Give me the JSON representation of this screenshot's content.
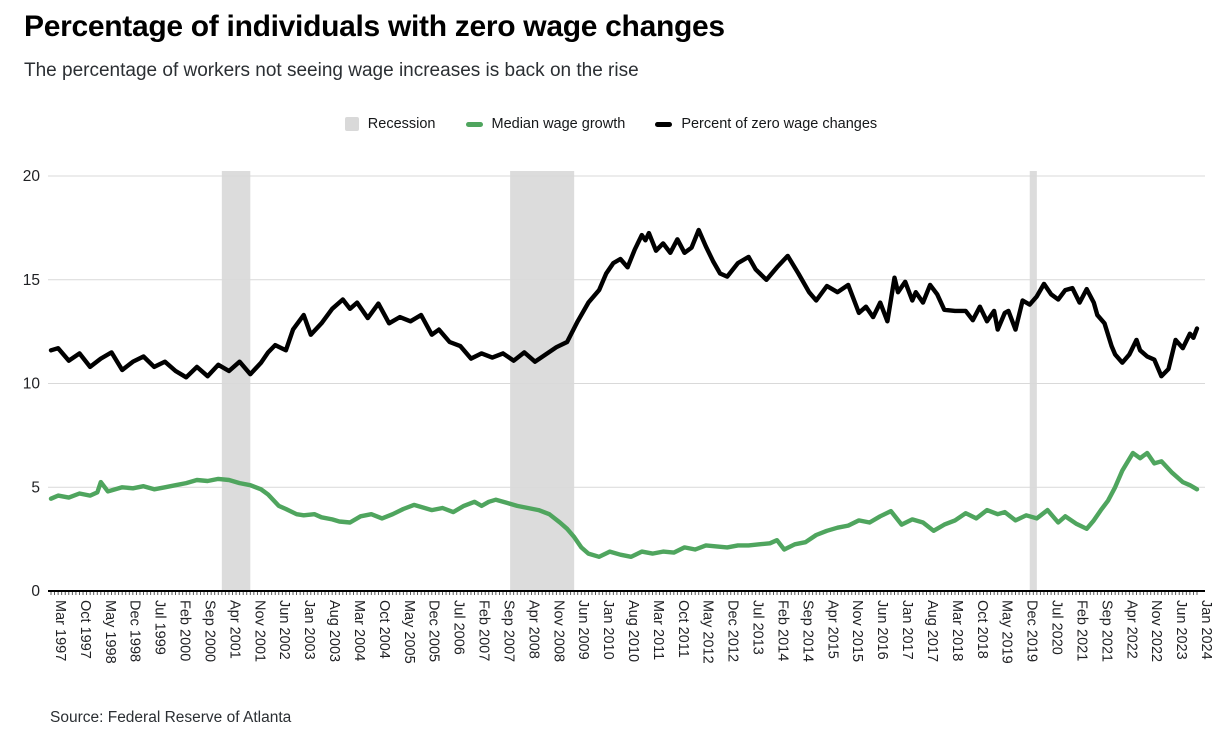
{
  "header": {
    "title": "Percentage of individuals with zero wage changes",
    "subtitle": "The percentage of workers not seeing wage increases is back on the rise"
  },
  "legend": {
    "items": [
      {
        "label": "Recession",
        "color": "#d9d9d9",
        "swatch": "square"
      },
      {
        "label": "Median wage growth",
        "color": "#4fa55e",
        "swatch": "dash"
      },
      {
        "label": "Percent of zero wage changes",
        "color": "#000000",
        "swatch": "dash"
      }
    ]
  },
  "source": {
    "text": "Source: Federal Reserve of Atlanta"
  },
  "colors": {
    "recession_band": "#dcdcdc",
    "gridline": "#d9d9d9",
    "axis": "#000000",
    "tick_text": "#202124"
  },
  "chart_data": {
    "type": "line",
    "title": "Percentage of individuals with zero wage changes",
    "xlabel": "",
    "ylabel": "",
    "grid": true,
    "legend_position": "top-center",
    "y_axis": {
      "min": 0,
      "max": 20,
      "ticks": [
        0,
        5,
        10,
        15,
        20
      ]
    },
    "x_axis": {
      "unit": "months since Mar 1997",
      "start": "Mar 1997",
      "end": "Jan 2024",
      "months_total": 322,
      "tick_interval_months": 7,
      "tick_labels": [
        "Mar 1997",
        "Oct 1997",
        "May 1998",
        "Dec 1998",
        "Jul 1999",
        "Feb 2000",
        "Sep 2000",
        "Apr 2001",
        "Nov 2001",
        "Jun 2002",
        "Jan 2003",
        "Aug 2003",
        "Mar 2004",
        "Oct 2004",
        "May 2005",
        "Dec 2005",
        "Jul 2006",
        "Feb 2007",
        "Sep 2007",
        "Apr 2008",
        "Nov 2008",
        "Jun 2009",
        "Jan 2010",
        "Aug 2010",
        "Mar 2011",
        "Oct 2011",
        "May 2012",
        "Dec 2012",
        "Jul 2013",
        "Feb 2014",
        "Sep 2014",
        "Apr 2015",
        "Nov 2015",
        "Jun 2016",
        "Jan 2017",
        "Aug 2017",
        "Mar 2018",
        "Oct 2018",
        "May 2019",
        "Dec 2019",
        "Jul 2020",
        "Feb 2021",
        "Sep 2021",
        "Apr 2022",
        "Nov 2022",
        "Jun 2023",
        "Jan 2024"
      ]
    },
    "recession_bands": [
      {
        "start": "Mar 2001",
        "end": "Nov 2001",
        "start_month": 48,
        "end_month": 56
      },
      {
        "start": "Dec 2007",
        "end": "Jun 2009",
        "start_month": 129,
        "end_month": 147
      },
      {
        "start": "Feb 2020",
        "end": "Apr 2020",
        "start_month": 275,
        "end_month": 277
      }
    ],
    "series": [
      {
        "name": "Median wage growth",
        "color": "#4fa55e",
        "points": [
          [
            0,
            4.45
          ],
          [
            2,
            4.6
          ],
          [
            5,
            4.5
          ],
          [
            8,
            4.7
          ],
          [
            11,
            4.6
          ],
          [
            13,
            4.75
          ],
          [
            14,
            5.25
          ],
          [
            16,
            4.8
          ],
          [
            17,
            4.85
          ],
          [
            20,
            5.0
          ],
          [
            23,
            4.95
          ],
          [
            26,
            5.05
          ],
          [
            29,
            4.9
          ],
          [
            32,
            5.0
          ],
          [
            35,
            5.1
          ],
          [
            38,
            5.2
          ],
          [
            41,
            5.35
          ],
          [
            44,
            5.3
          ],
          [
            47,
            5.4
          ],
          [
            50,
            5.35
          ],
          [
            53,
            5.2
          ],
          [
            56,
            5.1
          ],
          [
            59,
            4.9
          ],
          [
            61,
            4.65
          ],
          [
            64,
            4.1
          ],
          [
            66,
            3.95
          ],
          [
            69,
            3.7
          ],
          [
            71,
            3.65
          ],
          [
            74,
            3.7
          ],
          [
            76,
            3.55
          ],
          [
            79,
            3.45
          ],
          [
            81,
            3.35
          ],
          [
            84,
            3.3
          ],
          [
            87,
            3.6
          ],
          [
            90,
            3.7
          ],
          [
            93,
            3.5
          ],
          [
            96,
            3.7
          ],
          [
            99,
            3.95
          ],
          [
            102,
            4.15
          ],
          [
            105,
            4.0
          ],
          [
            107,
            3.9
          ],
          [
            110,
            4.0
          ],
          [
            113,
            3.8
          ],
          [
            116,
            4.1
          ],
          [
            119,
            4.3
          ],
          [
            121,
            4.1
          ],
          [
            123,
            4.3
          ],
          [
            125,
            4.4
          ],
          [
            128,
            4.25
          ],
          [
            131,
            4.1
          ],
          [
            134,
            4.0
          ],
          [
            137,
            3.9
          ],
          [
            140,
            3.7
          ],
          [
            143,
            3.3
          ],
          [
            145,
            3.0
          ],
          [
            147,
            2.6
          ],
          [
            149,
            2.1
          ],
          [
            151,
            1.8
          ],
          [
            154,
            1.65
          ],
          [
            157,
            1.9
          ],
          [
            160,
            1.75
          ],
          [
            163,
            1.65
          ],
          [
            166,
            1.9
          ],
          [
            169,
            1.8
          ],
          [
            172,
            1.9
          ],
          [
            175,
            1.85
          ],
          [
            178,
            2.1
          ],
          [
            181,
            2.0
          ],
          [
            184,
            2.2
          ],
          [
            187,
            2.15
          ],
          [
            190,
            2.1
          ],
          [
            193,
            2.2
          ],
          [
            196,
            2.2
          ],
          [
            199,
            2.25
          ],
          [
            202,
            2.3
          ],
          [
            204,
            2.45
          ],
          [
            206,
            2.0
          ],
          [
            209,
            2.25
          ],
          [
            212,
            2.35
          ],
          [
            215,
            2.7
          ],
          [
            218,
            2.9
          ],
          [
            221,
            3.05
          ],
          [
            224,
            3.15
          ],
          [
            227,
            3.4
          ],
          [
            230,
            3.3
          ],
          [
            233,
            3.6
          ],
          [
            236,
            3.85
          ],
          [
            239,
            3.2
          ],
          [
            242,
            3.45
          ],
          [
            245,
            3.3
          ],
          [
            248,
            2.9
          ],
          [
            251,
            3.2
          ],
          [
            254,
            3.4
          ],
          [
            257,
            3.75
          ],
          [
            260,
            3.5
          ],
          [
            263,
            3.9
          ],
          [
            266,
            3.7
          ],
          [
            268,
            3.8
          ],
          [
            271,
            3.4
          ],
          [
            274,
            3.65
          ],
          [
            277,
            3.5
          ],
          [
            280,
            3.9
          ],
          [
            283,
            3.3
          ],
          [
            285,
            3.6
          ],
          [
            288,
            3.25
          ],
          [
            291,
            3.0
          ],
          [
            293,
            3.4
          ],
          [
            295,
            3.9
          ],
          [
            297,
            4.35
          ],
          [
            299,
            5.0
          ],
          [
            301,
            5.8
          ],
          [
            304,
            6.65
          ],
          [
            306,
            6.4
          ],
          [
            308,
            6.65
          ],
          [
            310,
            6.15
          ],
          [
            312,
            6.25
          ],
          [
            315,
            5.7
          ],
          [
            318,
            5.25
          ],
          [
            320,
            5.1
          ],
          [
            322,
            4.9
          ]
        ]
      },
      {
        "name": "Percent of zero wage changes",
        "color": "#000000",
        "points": [
          [
            0,
            11.6
          ],
          [
            2,
            11.7
          ],
          [
            5,
            11.1
          ],
          [
            8,
            11.45
          ],
          [
            11,
            10.8
          ],
          [
            14,
            11.2
          ],
          [
            17,
            11.5
          ],
          [
            20,
            10.65
          ],
          [
            23,
            11.05
          ],
          [
            26,
            11.3
          ],
          [
            29,
            10.8
          ],
          [
            32,
            11.05
          ],
          [
            35,
            10.6
          ],
          [
            38,
            10.3
          ],
          [
            41,
            10.8
          ],
          [
            44,
            10.35
          ],
          [
            47,
            10.9
          ],
          [
            50,
            10.6
          ],
          [
            53,
            11.05
          ],
          [
            56,
            10.45
          ],
          [
            59,
            11.0
          ],
          [
            61,
            11.5
          ],
          [
            63,
            11.85
          ],
          [
            66,
            11.6
          ],
          [
            68,
            12.6
          ],
          [
            71,
            13.3
          ],
          [
            73,
            12.35
          ],
          [
            76,
            12.9
          ],
          [
            79,
            13.6
          ],
          [
            82,
            14.05
          ],
          [
            84,
            13.6
          ],
          [
            86,
            13.9
          ],
          [
            89,
            13.15
          ],
          [
            92,
            13.85
          ],
          [
            95,
            12.9
          ],
          [
            98,
            13.2
          ],
          [
            101,
            13.0
          ],
          [
            104,
            13.3
          ],
          [
            107,
            12.35
          ],
          [
            109,
            12.6
          ],
          [
            112,
            12.0
          ],
          [
            115,
            11.8
          ],
          [
            118,
            11.2
          ],
          [
            121,
            11.45
          ],
          [
            124,
            11.25
          ],
          [
            127,
            11.45
          ],
          [
            130,
            11.1
          ],
          [
            133,
            11.5
          ],
          [
            136,
            11.05
          ],
          [
            139,
            11.4
          ],
          [
            142,
            11.75
          ],
          [
            145,
            12.0
          ],
          [
            148,
            13.0
          ],
          [
            151,
            13.9
          ],
          [
            154,
            14.5
          ],
          [
            156,
            15.3
          ],
          [
            158,
            15.8
          ],
          [
            160,
            16.0
          ],
          [
            162,
            15.6
          ],
          [
            164,
            16.45
          ],
          [
            166,
            17.15
          ],
          [
            167,
            16.9
          ],
          [
            168,
            17.25
          ],
          [
            170,
            16.4
          ],
          [
            172,
            16.75
          ],
          [
            174,
            16.3
          ],
          [
            176,
            16.95
          ],
          [
            178,
            16.3
          ],
          [
            180,
            16.55
          ],
          [
            182,
            17.4
          ],
          [
            184,
            16.6
          ],
          [
            186,
            15.9
          ],
          [
            188,
            15.3
          ],
          [
            190,
            15.15
          ],
          [
            193,
            15.8
          ],
          [
            196,
            16.1
          ],
          [
            198,
            15.5
          ],
          [
            201,
            15.0
          ],
          [
            204,
            15.6
          ],
          [
            207,
            16.15
          ],
          [
            210,
            15.3
          ],
          [
            213,
            14.4
          ],
          [
            215,
            14.0
          ],
          [
            218,
            14.7
          ],
          [
            221,
            14.4
          ],
          [
            224,
            14.75
          ],
          [
            227,
            13.4
          ],
          [
            229,
            13.7
          ],
          [
            231,
            13.2
          ],
          [
            233,
            13.9
          ],
          [
            235,
            13.0
          ],
          [
            237,
            15.1
          ],
          [
            238,
            14.4
          ],
          [
            240,
            14.9
          ],
          [
            242,
            14.0
          ],
          [
            243,
            14.4
          ],
          [
            245,
            13.9
          ],
          [
            247,
            14.75
          ],
          [
            249,
            14.3
          ],
          [
            251,
            13.55
          ],
          [
            254,
            13.5
          ],
          [
            257,
            13.5
          ],
          [
            259,
            13.05
          ],
          [
            261,
            13.7
          ],
          [
            263,
            13.0
          ],
          [
            265,
            13.5
          ],
          [
            266,
            12.6
          ],
          [
            268,
            13.4
          ],
          [
            269,
            13.5
          ],
          [
            271,
            12.6
          ],
          [
            273,
            14.0
          ],
          [
            275,
            13.8
          ],
          [
            277,
            14.2
          ],
          [
            279,
            14.8
          ],
          [
            281,
            14.3
          ],
          [
            283,
            14.05
          ],
          [
            285,
            14.5
          ],
          [
            287,
            14.6
          ],
          [
            289,
            13.9
          ],
          [
            291,
            14.55
          ],
          [
            293,
            13.9
          ],
          [
            294,
            13.3
          ],
          [
            296,
            12.9
          ],
          [
            298,
            11.8
          ],
          [
            299,
            11.4
          ],
          [
            301,
            11.0
          ],
          [
            303,
            11.4
          ],
          [
            305,
            12.1
          ],
          [
            306,
            11.6
          ],
          [
            308,
            11.3
          ],
          [
            310,
            11.15
          ],
          [
            312,
            10.35
          ],
          [
            314,
            10.7
          ],
          [
            316,
            12.1
          ],
          [
            318,
            11.7
          ],
          [
            320,
            12.4
          ],
          [
            321,
            12.2
          ],
          [
            322,
            12.65
          ]
        ]
      }
    ]
  }
}
